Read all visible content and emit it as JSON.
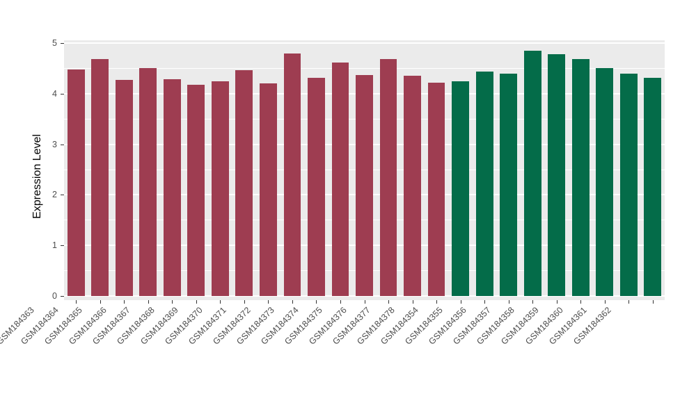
{
  "chart_data": {
    "type": "bar",
    "title": "",
    "xlabel": "",
    "ylabel": "Expression Level",
    "ylim": [
      0,
      5
    ],
    "yticks": [
      0,
      1,
      2,
      3,
      4,
      5
    ],
    "minor_gridlines": [
      0.5,
      1.5,
      2.5,
      3.5,
      4.5
    ],
    "grid": "on",
    "legend": "none",
    "panel_background": "#ebebeb",
    "gridline_color": "#ffffff",
    "categories": [
      "GSM184363",
      "GSM184364",
      "GSM184365",
      "GSM184366",
      "GSM184367",
      "GSM184368",
      "GSM184369",
      "GSM184370",
      "GSM184371",
      "GSM184372",
      "GSM184373",
      "GSM184374",
      "GSM184375",
      "GSM184376",
      "GSM184377",
      "GSM184378",
      "GSM184354",
      "GSM184355",
      "GSM184356",
      "GSM184357",
      "GSM184358",
      "GSM184359",
      "GSM184360",
      "GSM184361",
      "GSM184362"
    ],
    "values": [
      4.48,
      4.69,
      4.27,
      4.5,
      4.28,
      4.17,
      4.24,
      4.47,
      4.21,
      4.8,
      4.32,
      4.62,
      4.37,
      4.69,
      4.35,
      4.22,
      4.24,
      4.43,
      4.4,
      4.85,
      4.78,
      4.69,
      4.51,
      4.39,
      4.32
    ],
    "groups": [
      "red",
      "red",
      "red",
      "red",
      "red",
      "red",
      "red",
      "red",
      "red",
      "red",
      "red",
      "red",
      "red",
      "red",
      "red",
      "red",
      "green",
      "green",
      "green",
      "green",
      "green",
      "green",
      "green",
      "green",
      "green"
    ],
    "group_colors": {
      "red": "#9e3d51",
      "green": "#046c49"
    },
    "axis_text_color": "#4d4d4d",
    "axis_title_color": "#000000"
  }
}
